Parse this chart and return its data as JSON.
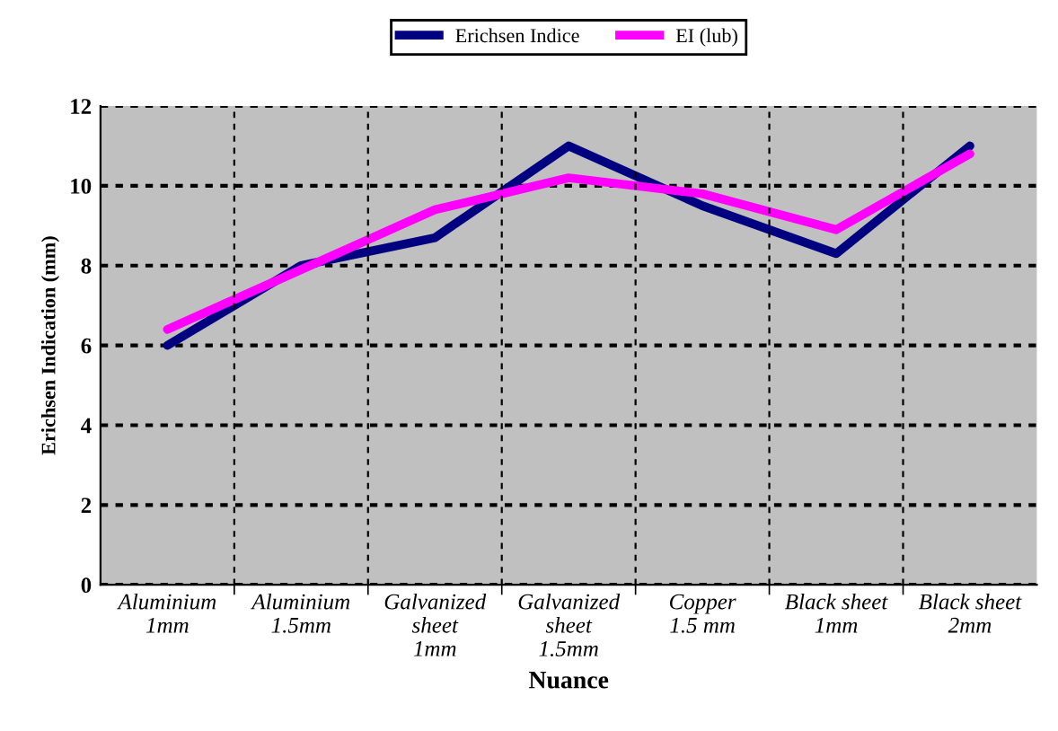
{
  "chart_data": {
    "type": "line",
    "xlabel": "Nuance",
    "ylabel": "Erichsen Indication (mm)",
    "categories": [
      "Aluminium\n1mm",
      "Aluminium\n1.5mm",
      "Galvanized\nsheet\n1mm",
      "Galvanized\nsheet\n1.5mm",
      "Copper\n1.5 mm",
      "Black sheet\n1mm",
      "Black sheet\n2mm"
    ],
    "series": [
      {
        "name": "Erichsen Indice",
        "color": "#000080",
        "values": [
          6.0,
          8.0,
          8.7,
          11.0,
          9.5,
          8.3,
          11.0
        ]
      },
      {
        "name": "EI (lub)",
        "color": "#ff00ff",
        "values": [
          6.4,
          7.9,
          9.4,
          10.2,
          9.8,
          8.9,
          10.8
        ]
      }
    ],
    "ylim": [
      0,
      12
    ],
    "yticks": [
      0,
      2,
      4,
      6,
      8,
      10,
      12
    ],
    "grid": true,
    "legend": "top",
    "marker": "none",
    "line_style": "solid"
  }
}
